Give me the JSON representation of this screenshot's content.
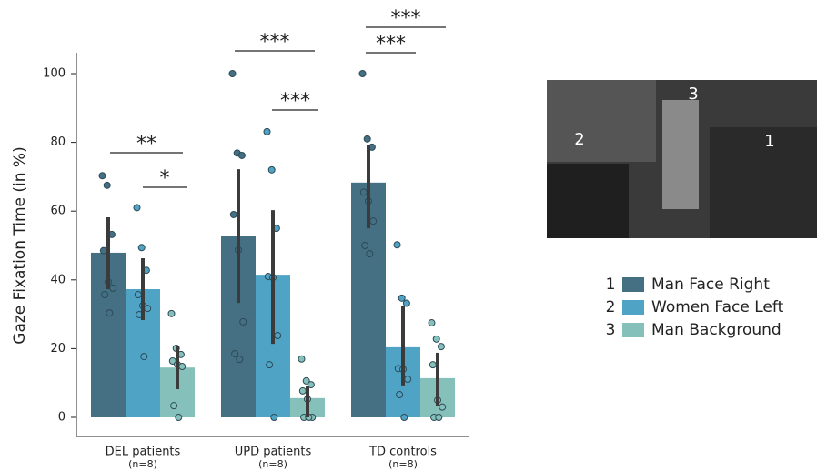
{
  "chart_data": {
    "type": "bar",
    "ylabel": "Gaze Fixation Time (in %)",
    "categories": [
      "DEL patients",
      "UPD patients",
      "TD controls"
    ],
    "category_notes": [
      "(n=8)",
      "(n=8)",
      "(n=8)"
    ],
    "ylim": [
      0,
      100
    ],
    "yticks": [
      0,
      20,
      40,
      60,
      80,
      100
    ],
    "series": [
      {
        "name": "Man Face Right",
        "color": "#456f82",
        "values": [
          47.9,
          52.9,
          68.3
        ],
        "ci": [
          [
            37.3,
            58.2
          ],
          [
            33.3,
            72.2
          ],
          [
            55,
            79.1
          ]
        ],
        "points": [
          [
            70.3,
            67.5,
            53.2,
            48.5,
            39.4,
            37.6,
            35.7,
            30.4
          ],
          [
            100,
            76.9,
            76.2,
            59,
            48.7,
            27.8,
            18.5,
            16.9
          ],
          [
            100,
            81,
            78.6,
            65.5,
            62.9,
            57.1,
            50,
            47.6
          ]
        ]
      },
      {
        "name": "Women Face Left",
        "color": "#4fa3c4",
        "values": [
          37.3,
          41.5,
          20.4
        ],
        "ci": [
          [
            28.3,
            46.3
          ],
          [
            21.4,
            60.3
          ],
          [
            9.3,
            32.3
          ]
        ],
        "points": [
          [
            61,
            49.4,
            42.8,
            35.7,
            32.5,
            31.7,
            29.9,
            17.7
          ],
          [
            83.1,
            72,
            55,
            41,
            40.7,
            23.8,
            15.3,
            0
          ],
          [
            50.2,
            34.7,
            33.2,
            14.2,
            14,
            11.1,
            6.6,
            0
          ]
        ]
      },
      {
        "name": "Man Background",
        "color": "#86c0bb",
        "values": [
          14.5,
          5.6,
          11.4
        ],
        "ci": [
          [
            8.2,
            20.9
          ],
          [
            0,
            9
          ],
          [
            3.4,
            18.8
          ]
        ],
        "points": [
          [
            30.2,
            20.1,
            18.3,
            16.4,
            15.4,
            14.8,
            3.4,
            0
          ],
          [
            17,
            10.6,
            9.5,
            7.7,
            5.3,
            0,
            0,
            0
          ],
          [
            27.5,
            22.8,
            20.6,
            15.3,
            5,
            3,
            0,
            0
          ]
        ]
      }
    ],
    "annotations": [
      "**",
      "*",
      "***",
      "***",
      "***",
      "***"
    ],
    "legend_numbers": [
      "1",
      "2",
      "3"
    ],
    "image_labels": [
      "1",
      "2",
      "3"
    ]
  }
}
